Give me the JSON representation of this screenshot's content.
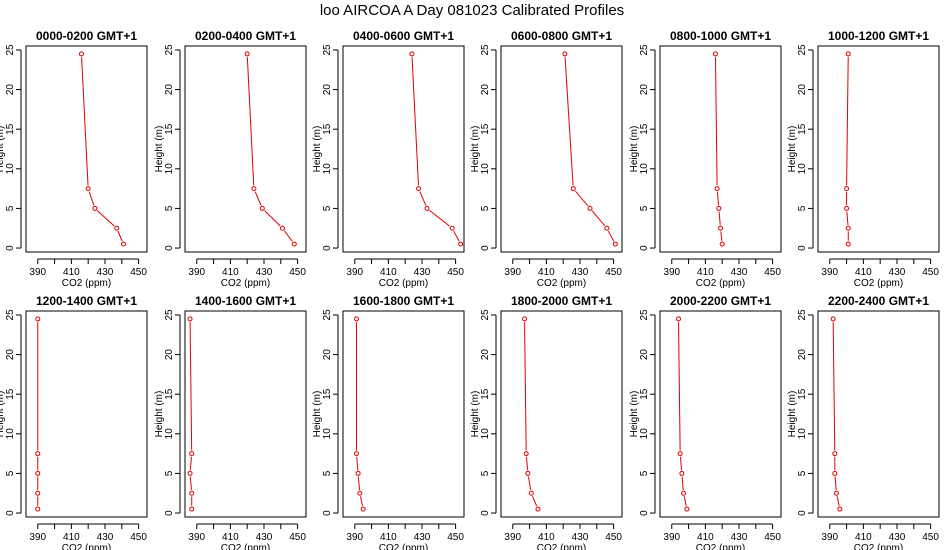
{
  "title": "loo AIRCOA A  Day 081023  Calibrated Profiles",
  "chart_data": {
    "type": "line",
    "series_color": "#e00000",
    "xlabel": "CO2 (ppm)",
    "ylabel": "Height (m)",
    "xlim": [
      383,
      455
    ],
    "ylim": [
      -0.5,
      25.5
    ],
    "xticks": [
      390,
      410,
      430,
      450
    ],
    "xtick_labels": [
      "390",
      "410",
      "430",
      "450"
    ],
    "xticks_minor": [
      400,
      420,
      440
    ],
    "yticks": [
      0,
      5,
      10,
      15,
      20,
      25
    ],
    "ytick_labels": [
      "0",
      "5",
      "10",
      "15",
      "20",
      "25"
    ],
    "heights": [
      0.5,
      2.5,
      5,
      7.5,
      24.5
    ],
    "panels": [
      {
        "title": "0000-0200 GMT+1",
        "co2": [
          441,
          437,
          424,
          420,
          416
        ]
      },
      {
        "title": "0200-0400 GMT+1",
        "co2": [
          448,
          441,
          429,
          424,
          420
        ]
      },
      {
        "title": "0400-0600 GMT+1",
        "co2": [
          453,
          448,
          433,
          428,
          424
        ]
      },
      {
        "title": "0600-0800 GMT+1",
        "co2": [
          451,
          446,
          436,
          426,
          421
        ]
      },
      {
        "title": "0800-1000 GMT+1",
        "co2": [
          420,
          419,
          418,
          417,
          416
        ]
      },
      {
        "title": "1000-1200 GMT+1",
        "co2": [
          401,
          401,
          400,
          400,
          401
        ]
      },
      {
        "title": "1200-1400 GMT+1",
        "co2": [
          390,
          390,
          390,
          390,
          390
        ]
      },
      {
        "title": "1400-1600 GMT+1",
        "co2": [
          387,
          387,
          386,
          387,
          386
        ]
      },
      {
        "title": "1600-1800 GMT+1",
        "co2": [
          395,
          393,
          392,
          391,
          391
        ]
      },
      {
        "title": "1800-2000 GMT+1",
        "co2": [
          405,
          401,
          399,
          398,
          397
        ]
      },
      {
        "title": "2000-2200 GMT+1",
        "co2": [
          399,
          397,
          396,
          395,
          394
        ]
      },
      {
        "title": "2200-2400 GMT+1",
        "co2": [
          396,
          394,
          393,
          393,
          392
        ]
      }
    ]
  }
}
